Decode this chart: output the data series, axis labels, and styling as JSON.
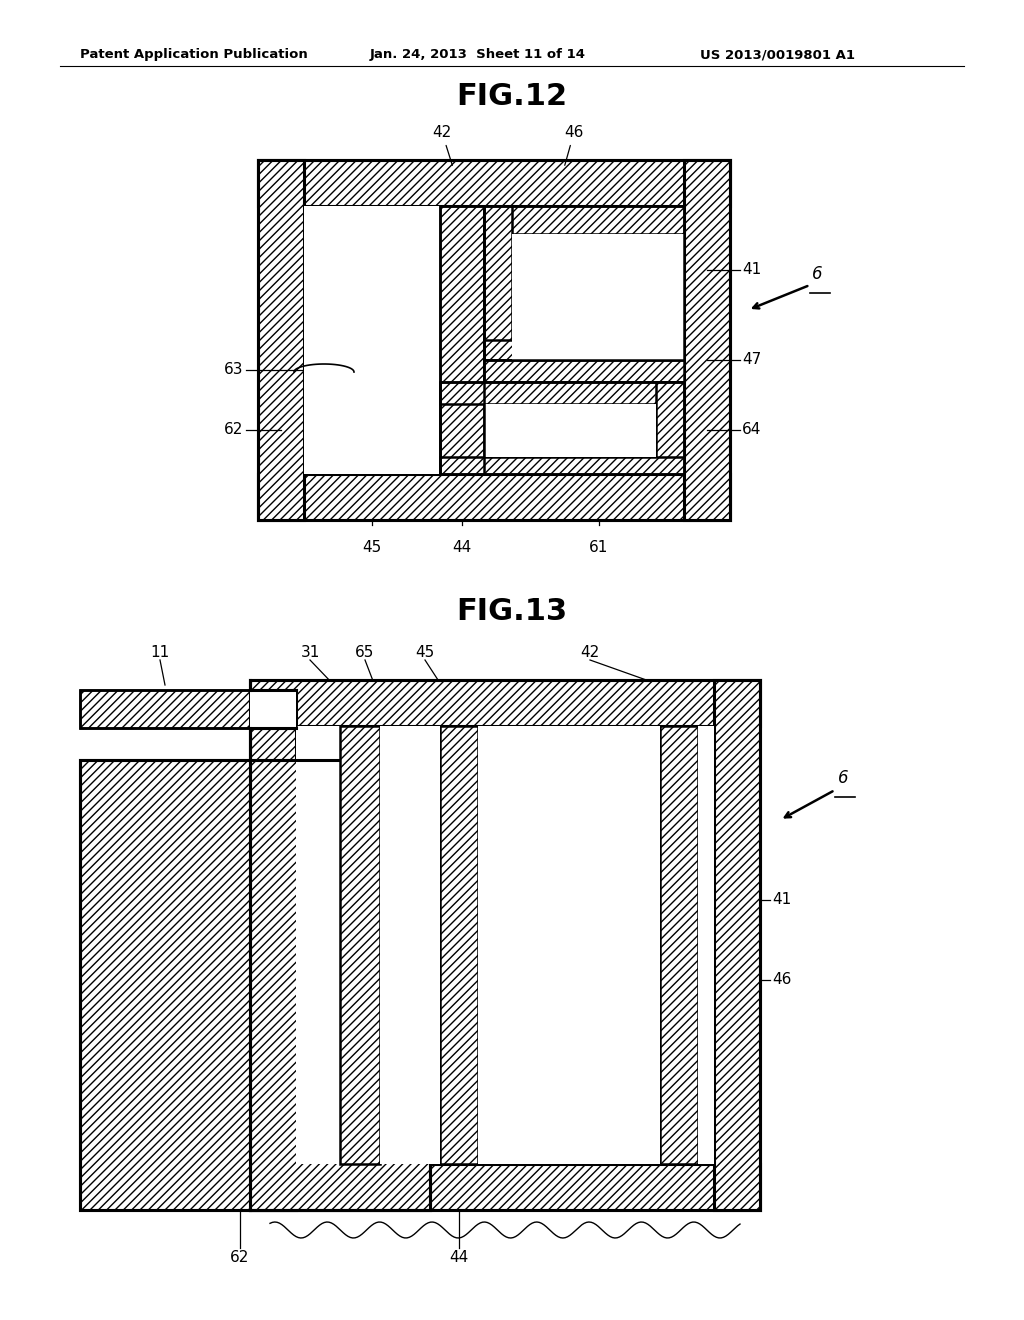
{
  "header_left": "Patent Application Publication",
  "header_mid": "Jan. 24, 2013  Sheet 11 of 14",
  "header_right": "US 2013/0019801 A1",
  "fig12_title": "FIG.12",
  "fig13_title": "FIG.13",
  "bg_color": "#ffffff"
}
